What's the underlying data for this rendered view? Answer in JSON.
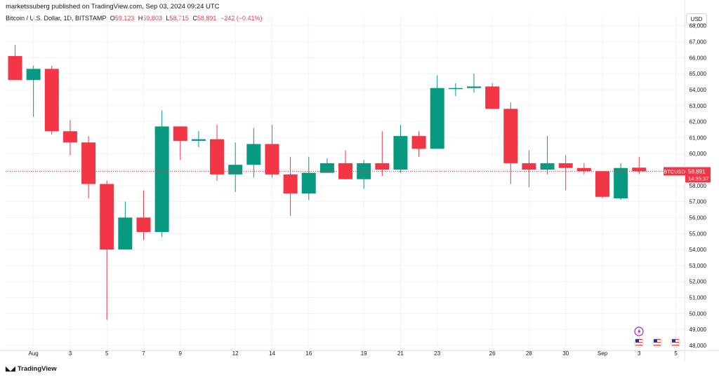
{
  "header": {
    "publisher_line": "marketssuberg published on TradingView.com, Sep 03, 2024 09:24 UTC",
    "symbol": "Bitcoin / U.S. Dollar, 1D, BITSTAMP",
    "ohlc": [
      {
        "key": "O",
        "value": "59,123"
      },
      {
        "key": "H",
        "value": "59,803"
      },
      {
        "key": "L",
        "value": "58,715"
      },
      {
        "key": "C",
        "value": "58,891"
      }
    ],
    "change": "−242 (−0.41%)"
  },
  "toolbar": {
    "currency": "USD"
  },
  "footer": {
    "brand": "TradingView"
  },
  "price_label": {
    "ticker": "BTCUSD",
    "price": "58,891",
    "countdown": "14:35:37"
  },
  "colors": {
    "up": "#089981",
    "down": "#f23645",
    "grid": "#f0f3fa",
    "text": "#131722"
  },
  "event_icons": [
    "lightning-icon",
    "us-flag-icon",
    "us-flag-icon",
    "us-flag-icon"
  ],
  "chart_data": {
    "type": "candlestick",
    "symbol": "BTCUSD",
    "ylim": [
      47500,
      68500
    ],
    "y_ticks": [
      48000,
      49000,
      50000,
      51000,
      52000,
      53000,
      54000,
      55000,
      56000,
      57000,
      58000,
      59000,
      60000,
      61000,
      62000,
      63000,
      64000,
      65000,
      66000,
      67000,
      68000
    ],
    "x_ticks": [
      {
        "label": "Aug",
        "day": "2024-08-01"
      },
      {
        "label": "3",
        "day": "2024-08-03"
      },
      {
        "label": "5",
        "day": "2024-08-05"
      },
      {
        "label": "7",
        "day": "2024-08-07"
      },
      {
        "label": "9",
        "day": "2024-08-09"
      },
      {
        "label": "12",
        "day": "2024-08-12"
      },
      {
        "label": "14",
        "day": "2024-08-14"
      },
      {
        "label": "16",
        "day": "2024-08-16"
      },
      {
        "label": "19",
        "day": "2024-08-19"
      },
      {
        "label": "21",
        "day": "2024-08-21"
      },
      {
        "label": "23",
        "day": "2024-08-23"
      },
      {
        "label": "26",
        "day": "2024-08-26"
      },
      {
        "label": "28",
        "day": "2024-08-28"
      },
      {
        "label": "30",
        "day": "2024-08-30"
      },
      {
        "label": "Sep",
        "day": "2024-09-01"
      },
      {
        "label": "3",
        "day": "2024-09-03"
      },
      {
        "label": "5",
        "day": "2024-09-05"
      }
    ],
    "candles": [
      {
        "date": "2024-07-31",
        "o": 66100,
        "h": 66800,
        "l": 64600,
        "c": 64600
      },
      {
        "date": "2024-08-01",
        "o": 64600,
        "h": 65500,
        "l": 62300,
        "c": 65300
      },
      {
        "date": "2024-08-02",
        "o": 65300,
        "h": 65500,
        "l": 61200,
        "c": 61400
      },
      {
        "date": "2024-08-03",
        "o": 61400,
        "h": 62100,
        "l": 59900,
        "c": 60700
      },
      {
        "date": "2024-08-04",
        "o": 60700,
        "h": 61100,
        "l": 57200,
        "c": 58100
      },
      {
        "date": "2024-08-05",
        "o": 58100,
        "h": 58300,
        "l": 49600,
        "c": 54000
      },
      {
        "date": "2024-08-06",
        "o": 54000,
        "h": 57000,
        "l": 54000,
        "c": 56000
      },
      {
        "date": "2024-08-07",
        "o": 56000,
        "h": 57700,
        "l": 54600,
        "c": 55100
      },
      {
        "date": "2024-08-08",
        "o": 55100,
        "h": 62700,
        "l": 54800,
        "c": 61700
      },
      {
        "date": "2024-08-09",
        "o": 61700,
        "h": 61700,
        "l": 59600,
        "c": 60800
      },
      {
        "date": "2024-08-10",
        "o": 60800,
        "h": 61400,
        "l": 60400,
        "c": 60900
      },
      {
        "date": "2024-08-11",
        "o": 60900,
        "h": 61800,
        "l": 58300,
        "c": 58700
      },
      {
        "date": "2024-08-12",
        "o": 58700,
        "h": 60700,
        "l": 57600,
        "c": 59300
      },
      {
        "date": "2024-08-13",
        "o": 59300,
        "h": 61600,
        "l": 58500,
        "c": 60600
      },
      {
        "date": "2024-08-14",
        "o": 60600,
        "h": 61800,
        "l": 58500,
        "c": 58700
      },
      {
        "date": "2024-08-15",
        "o": 58700,
        "h": 59800,
        "l": 56100,
        "c": 57500
      },
      {
        "date": "2024-08-16",
        "o": 57500,
        "h": 59800,
        "l": 57100,
        "c": 58800
      },
      {
        "date": "2024-08-17",
        "o": 58800,
        "h": 59700,
        "l": 58800,
        "c": 59400
      },
      {
        "date": "2024-08-18",
        "o": 59400,
        "h": 60200,
        "l": 58400,
        "c": 58400
      },
      {
        "date": "2024-08-19",
        "o": 58400,
        "h": 59600,
        "l": 57800,
        "c": 59400
      },
      {
        "date": "2024-08-20",
        "o": 59400,
        "h": 61400,
        "l": 58600,
        "c": 59000
      },
      {
        "date": "2024-08-21",
        "o": 59000,
        "h": 61800,
        "l": 58800,
        "c": 61100
      },
      {
        "date": "2024-08-22",
        "o": 61100,
        "h": 61400,
        "l": 59800,
        "c": 60300
      },
      {
        "date": "2024-08-23",
        "o": 60300,
        "h": 64900,
        "l": 60300,
        "c": 64100
      },
      {
        "date": "2024-08-24",
        "o": 64100,
        "h": 64400,
        "l": 63600,
        "c": 64100
      },
      {
        "date": "2024-08-25",
        "o": 64100,
        "h": 65000,
        "l": 63800,
        "c": 64200
      },
      {
        "date": "2024-08-26",
        "o": 64200,
        "h": 64400,
        "l": 62800,
        "c": 62800
      },
      {
        "date": "2024-08-27",
        "o": 62800,
        "h": 63200,
        "l": 58100,
        "c": 59400
      },
      {
        "date": "2024-08-28",
        "o": 59400,
        "h": 60200,
        "l": 57900,
        "c": 59000
      },
      {
        "date": "2024-08-29",
        "o": 59000,
        "h": 61100,
        "l": 58700,
        "c": 59400
      },
      {
        "date": "2024-08-30",
        "o": 59400,
        "h": 59900,
        "l": 57700,
        "c": 59100
      },
      {
        "date": "2024-08-31",
        "o": 59100,
        "h": 59400,
        "l": 58700,
        "c": 58900
      },
      {
        "date": "2024-09-01",
        "o": 58900,
        "h": 58900,
        "l": 57200,
        "c": 57300
      },
      {
        "date": "2024-09-02",
        "o": 57200,
        "h": 59400,
        "l": 57100,
        "c": 59100
      },
      {
        "date": "2024-09-03",
        "o": 59123,
        "h": 59803,
        "l": 58715,
        "c": 58891
      }
    ],
    "last_price": 58891
  }
}
